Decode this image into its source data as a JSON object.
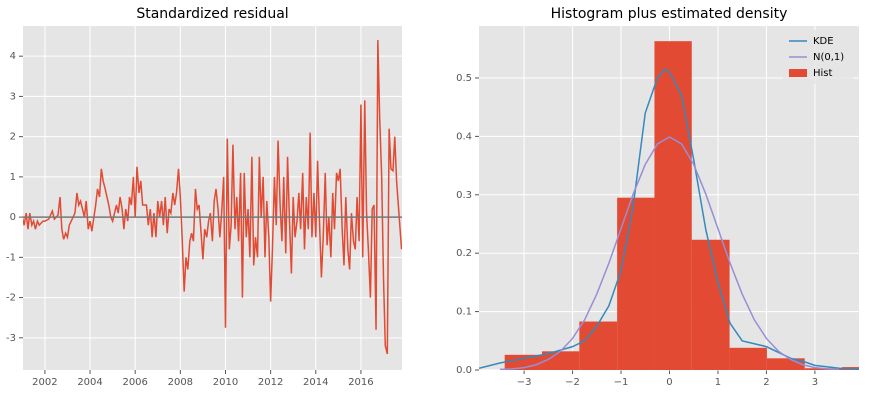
{
  "chart_data": [
    {
      "type": "line",
      "title": "Standardized residual",
      "color": "#e24a33",
      "hline": 0,
      "hline_color": "#777777",
      "x": [
        2001.0,
        2001.08,
        2001.17,
        2001.25,
        2001.33,
        2001.42,
        2001.5,
        2001.58,
        2001.67,
        2001.75,
        2001.83,
        2001.92,
        2002.0,
        2002.17,
        2002.33,
        2002.42,
        2002.58,
        2002.67,
        2002.75,
        2002.83,
        2002.92,
        2003.0,
        2003.08,
        2003.25,
        2003.33,
        2003.42,
        2003.5,
        2003.58,
        2003.75,
        2003.83,
        2003.92,
        2004.0,
        2004.08,
        2004.25,
        2004.33,
        2004.42,
        2004.5,
        2004.58,
        2004.67,
        2004.83,
        2004.92,
        2005.0,
        2005.17,
        2005.25,
        2005.33,
        2005.42,
        2005.5,
        2005.58,
        2005.67,
        2005.75,
        2005.83,
        2005.92,
        2006.0,
        2006.08,
        2006.17,
        2006.25,
        2006.33,
        2006.5,
        2006.58,
        2006.67,
        2006.75,
        2006.83,
        2006.92,
        2007.0,
        2007.08,
        2007.17,
        2007.25,
        2007.33,
        2007.42,
        2007.5,
        2007.58,
        2007.67,
        2007.75,
        2007.83,
        2007.92,
        2008.0,
        2008.08,
        2008.17,
        2008.25,
        2008.33,
        2008.42,
        2008.5,
        2008.58,
        2008.67,
        2008.75,
        2008.83,
        2008.92,
        2009.0,
        2009.08,
        2009.17,
        2009.25,
        2009.33,
        2009.42,
        2009.5,
        2009.58,
        2009.67,
        2009.75,
        2009.83,
        2009.92,
        2010.0,
        2010.08,
        2010.17,
        2010.25,
        2010.33,
        2010.42,
        2010.5,
        2010.58,
        2010.67,
        2010.75,
        2010.83,
        2010.92,
        2011.0,
        2011.08,
        2011.17,
        2011.25,
        2011.33,
        2011.42,
        2011.5,
        2011.58,
        2011.67,
        2011.75,
        2011.83,
        2011.92,
        2012.0,
        2012.08,
        2012.17,
        2012.25,
        2012.33,
        2012.42,
        2012.5,
        2012.58,
        2012.67,
        2012.75,
        2012.83,
        2012.92,
        2013.0,
        2013.08,
        2013.17,
        2013.25,
        2013.33,
        2013.42,
        2013.5,
        2013.58,
        2013.67,
        2013.75,
        2013.83,
        2013.92,
        2014.0,
        2014.08,
        2014.17,
        2014.25,
        2014.33,
        2014.42,
        2014.5,
        2014.58,
        2014.67,
        2014.75,
        2014.83,
        2014.92,
        2015.0,
        2015.08,
        2015.17,
        2015.25,
        2015.33,
        2015.42,
        2015.5,
        2015.58,
        2015.67,
        2015.75,
        2015.83,
        2015.92,
        2016.0,
        2016.08,
        2016.17,
        2016.25,
        2016.33,
        2016.42,
        2016.5,
        2016.58,
        2016.67,
        2016.75,
        2016.83,
        2016.92,
        2017.0,
        2017.08,
        2017.17,
        2017.25,
        2017.33,
        2017.42,
        2017.5,
        2017.58,
        2017.8
      ],
      "values": [
        0.0,
        -0.2,
        0.1,
        -0.3,
        0.1,
        -0.2,
        -0.1,
        -0.3,
        -0.1,
        -0.2,
        -0.15,
        -0.1,
        -0.1,
        -0.05,
        0.15,
        -0.05,
        0.05,
        0.5,
        -0.3,
        -0.55,
        -0.4,
        -0.5,
        -0.2,
        0.0,
        0.1,
        0.6,
        0.3,
        0.4,
        0.0,
        0.4,
        -0.3,
        -0.1,
        -0.35,
        0.3,
        0.7,
        0.5,
        1.2,
        0.9,
        0.7,
        0.3,
        0.0,
        -0.1,
        0.3,
        0.1,
        0.5,
        0.2,
        -0.3,
        0.2,
        -0.1,
        0.5,
        0.3,
        1.0,
        0.0,
        1.25,
        0.6,
        0.9,
        0.3,
        0.3,
        -0.2,
        0.2,
        -0.5,
        0.1,
        -0.5,
        0.4,
        0.0,
        0.4,
        -0.2,
        0.5,
        -0.4,
        0.2,
        0.1,
        0.6,
        0.3,
        0.6,
        1.2,
        0.5,
        -0.5,
        -1.85,
        -1.0,
        -1.3,
        -0.6,
        -0.4,
        -0.6,
        0.7,
        0.2,
        0.3,
        -0.4,
        -1.05,
        -0.3,
        -0.5,
        -0.1,
        0.1,
        -0.6,
        0.4,
        0.7,
        0.2,
        -0.5,
        0.1,
        1.0,
        -2.75,
        1.95,
        -0.8,
        -0.2,
        1.8,
        -0.3,
        0.5,
        -0.6,
        1.1,
        -2.0,
        1.1,
        -0.5,
        0.2,
        -1.0,
        1.5,
        -1.2,
        -0.5,
        -1.0,
        1.5,
        0.0,
        1.0,
        -1.0,
        0.4,
        -0.5,
        -2.1,
        -0.8,
        1.0,
        -0.2,
        1.9,
        0.3,
        -0.6,
        1.0,
        -0.9,
        1.5,
        0.0,
        -1.4,
        0.5,
        -0.5,
        -0.1,
        0.6,
        -0.3,
        1.1,
        -0.8,
        0.5,
        -0.3,
        2.1,
        -0.5,
        0.6,
        -0.5,
        1.4,
        -0.2,
        -1.5,
        -0.5,
        1.1,
        -0.7,
        0.0,
        -1.0,
        0.6,
        -0.3,
        1.1,
        0.9,
        1.2,
        -0.3,
        -1.2,
        0.5,
        -0.8,
        -1.3,
        0.1,
        -0.6,
        -0.8,
        0.5,
        -0.6,
        2.8,
        -1.0,
        2.9,
        0.1,
        -0.8,
        -2.0,
        0.2,
        0.3,
        -2.8,
        4.4,
        2.5,
        1.0,
        -1.5,
        -3.2,
        -3.4,
        2.2,
        1.2,
        1.15,
        2.0,
        0.9,
        -0.8
      ],
      "xlim": [
        2001.03,
        2017.82
      ],
      "xticks": [
        2002,
        2004,
        2006,
        2008,
        2010,
        2012,
        2014,
        2016
      ],
      "ylim": [
        -3.8,
        4.75
      ],
      "yticks": [
        -3,
        -2,
        -1,
        0,
        1,
        2,
        3,
        4
      ],
      "grid": true
    },
    {
      "type": "histogram",
      "title": "Histogram plus estimated density",
      "legend": "upper right",
      "hist": {
        "name": "Hist",
        "color": "#e24a33",
        "bins": [
          -3.4,
          -2.63,
          -1.86,
          -1.08,
          -0.31,
          0.46,
          1.24,
          2.01,
          2.79,
          3.56,
          4.33
        ],
        "values": [
          0.026,
          0.032,
          0.083,
          0.295,
          0.563,
          0.223,
          0.038,
          0.02,
          0.003,
          0.005
        ]
      },
      "series": [
        {
          "name": "KDE",
          "color": "#348abd",
          "x": [
            -3.93,
            -3.5,
            -3,
            -2.5,
            -2,
            -1.75,
            -1.5,
            -1.25,
            -1,
            -0.75,
            -0.5,
            -0.25,
            -0.1,
            0,
            0.25,
            0.5,
            0.75,
            1,
            1.25,
            1.5,
            1.75,
            2,
            2.25,
            2.5,
            2.75,
            3,
            3.5,
            3.91
          ],
          "values": [
            0.003,
            0.012,
            0.02,
            0.028,
            0.04,
            0.05,
            0.075,
            0.11,
            0.17,
            0.28,
            0.44,
            0.5,
            0.515,
            0.51,
            0.47,
            0.36,
            0.24,
            0.15,
            0.08,
            0.05,
            0.045,
            0.04,
            0.03,
            0.02,
            0.015,
            0.008,
            0.003,
            0.002
          ]
        },
        {
          "name": "N(0,1)",
          "color": "#988ed5",
          "x": [
            -3.5,
            -3.25,
            -3,
            -2.75,
            -2.5,
            -2.25,
            -2,
            -1.75,
            -1.5,
            -1.25,
            -1,
            -0.75,
            -0.5,
            -0.25,
            0,
            0.25,
            0.5,
            0.75,
            1,
            1.25,
            1.5,
            1.75,
            2,
            2.25,
            2.5,
            2.75,
            3,
            3.25,
            3.5
          ],
          "values": [
            0.001,
            0.002,
            0.004,
            0.009,
            0.018,
            0.032,
            0.054,
            0.086,
            0.13,
            0.183,
            0.242,
            0.301,
            0.352,
            0.387,
            0.399,
            0.387,
            0.352,
            0.301,
            0.242,
            0.183,
            0.13,
            0.086,
            0.054,
            0.032,
            0.018,
            0.009,
            0.004,
            0.002,
            0.001
          ]
        }
      ],
      "xlim": [
        -3.93,
        3.91
      ],
      "xticks": [
        {
          "value": -3,
          "label": "−3"
        },
        {
          "value": -2,
          "label": "−2"
        },
        {
          "value": -1,
          "label": "−1"
        },
        0,
        1,
        2,
        3
      ],
      "ylim": [
        0,
        0.589
      ],
      "yticks": [
        {
          "value": 0,
          "label": "0.0"
        },
        0.1,
        0.2,
        0.3,
        0.4,
        0.5
      ],
      "grid": true
    }
  ]
}
